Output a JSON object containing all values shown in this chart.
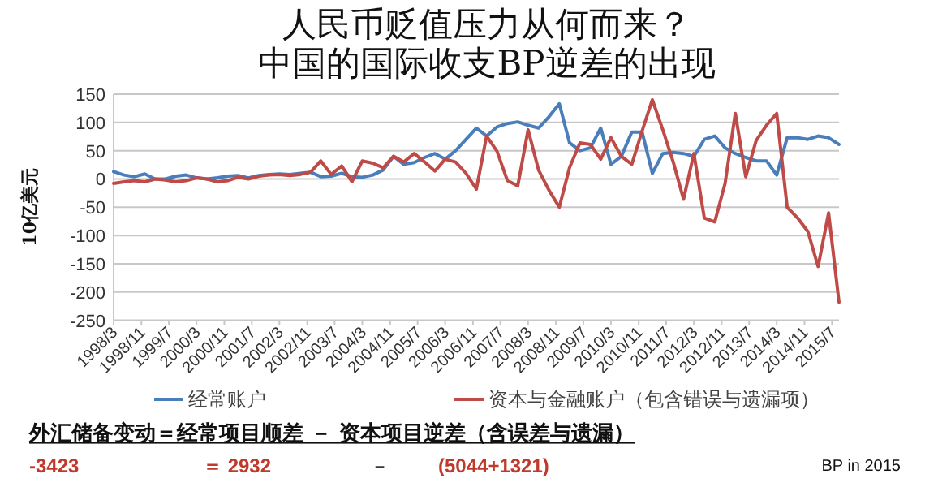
{
  "chart_data": {
    "type": "line",
    "title": "人民币贬值压力从何而来？",
    "subtitle": "中国的国际收支BP逆差的出现",
    "ylabel": "10亿美元",
    "x": [
      "1998-03",
      "1998-06",
      "1998-09",
      "1998-12",
      "1999-03",
      "1999-06",
      "1999-09",
      "1999-12",
      "2000-03",
      "2000-06",
      "2000-09",
      "2000-12",
      "2001-03",
      "2001-06",
      "2001-09",
      "2001-12",
      "2002-03",
      "2002-06",
      "2002-09",
      "2002-12",
      "2003-03",
      "2003-06",
      "2003-09",
      "2003-12",
      "2004-03",
      "2004-06",
      "2004-09",
      "2004-12",
      "2005-03",
      "2005-06",
      "2005-09",
      "2005-12",
      "2006-03",
      "2006-06",
      "2006-09",
      "2006-12",
      "2007-03",
      "2007-06",
      "2007-09",
      "2007-12",
      "2008-03",
      "2008-06",
      "2008-09",
      "2008-12",
      "2009-03",
      "2009-06",
      "2009-09",
      "2009-12",
      "2010-03",
      "2010-06",
      "2010-09",
      "2010-12",
      "2011-03",
      "2011-06",
      "2011-09",
      "2011-12",
      "2012-03",
      "2012-06",
      "2012-09",
      "2012-12",
      "2013-03",
      "2013-06",
      "2013-09",
      "2013-12",
      "2014-03",
      "2014-06",
      "2014-09",
      "2014-12",
      "2015-03",
      "2015-06",
      "2015-09"
    ],
    "series": [
      {
        "name": "经常账户",
        "color": "#4a7ebb",
        "values": [
          13,
          7,
          4,
          9,
          0,
          0,
          5,
          7,
          2,
          0,
          2,
          5,
          6,
          2,
          6,
          8,
          9,
          8,
          10,
          12,
          4,
          5,
          10,
          4,
          3,
          7,
          16,
          40,
          26,
          29,
          38,
          45,
          35,
          50,
          70,
          90,
          76,
          92,
          98,
          101,
          95,
          90,
          110,
          133,
          64,
          50,
          55,
          90,
          26,
          40,
          83,
          83,
          10,
          45,
          47,
          45,
          40,
          70,
          76,
          55,
          45,
          38,
          32,
          32,
          7,
          73,
          73,
          70,
          76,
          73,
          61
        ]
      },
      {
        "name": "资本与金融账户（包含错误与遗漏项）",
        "color": "#be4b48",
        "values": [
          -8,
          -5,
          -3,
          -5,
          0,
          -2,
          -5,
          -3,
          2,
          0,
          -5,
          -3,
          3,
          0,
          5,
          7,
          8,
          6,
          8,
          12,
          32,
          8,
          23,
          -5,
          32,
          28,
          20,
          40,
          30,
          45,
          30,
          14,
          35,
          30,
          10,
          -18,
          76,
          49,
          -3,
          -12,
          87,
          16,
          -20,
          -50,
          20,
          64,
          61,
          35,
          73,
          40,
          26,
          85,
          140,
          87,
          30,
          -36,
          45,
          -69,
          -76,
          -8,
          116,
          4,
          68,
          95,
          116,
          -50,
          -69,
          -93,
          -155,
          -60,
          -218
        ]
      }
    ],
    "xlim": [
      "1998-03",
      "2015-09"
    ],
    "xticks": [
      {
        "value": "1998-03",
        "label": "1998/3"
      },
      {
        "value": "1998-11",
        "label": "1998/11"
      },
      {
        "value": "1999-07",
        "label": "1999/7"
      },
      {
        "value": "2000-03",
        "label": "2000/3"
      },
      {
        "value": "2000-11",
        "label": "2000/11"
      },
      {
        "value": "2001-07",
        "label": "2001/7"
      },
      {
        "value": "2002-03",
        "label": "2002/3"
      },
      {
        "value": "2002-11",
        "label": "2002/11"
      },
      {
        "value": "2003-07",
        "label": "2003/7"
      },
      {
        "value": "2004-03",
        "label": "2004/3"
      },
      {
        "value": "2004-11",
        "label": "2004/11"
      },
      {
        "value": "2005-07",
        "label": "2005/7"
      },
      {
        "value": "2006-03",
        "label": "2006/3"
      },
      {
        "value": "2006-11",
        "label": "2006/11"
      },
      {
        "value": "2007-07",
        "label": "2007/7"
      },
      {
        "value": "2008-03",
        "label": "2008/3"
      },
      {
        "value": "2008-11",
        "label": "2008/11"
      },
      {
        "value": "2009-07",
        "label": "2009/7"
      },
      {
        "value": "2010-03",
        "label": "2010/3"
      },
      {
        "value": "2010-11",
        "label": "2010/11"
      },
      {
        "value": "2011-07",
        "label": "2011/7"
      },
      {
        "value": "2012-03",
        "label": "2012/3"
      },
      {
        "value": "2012-11",
        "label": "2012/11"
      },
      {
        "value": "2013-07",
        "label": "2013/7"
      },
      {
        "value": "2014-03",
        "label": "2014/3"
      },
      {
        "value": "2014-11",
        "label": "2014/11"
      },
      {
        "value": "2015-07",
        "label": "2015/7"
      }
    ],
    "ylim": [
      -250,
      150
    ],
    "yticks": [
      -250,
      -200,
      -150,
      -100,
      -50,
      0,
      50,
      100,
      150
    ],
    "grid": "y",
    "legend": "bottom",
    "marker": "none",
    "line_style": "solid",
    "annotations": [
      "外汇储备变动＝经常项目顺差 － 资本项目逆差（含误差与遗漏）",
      "-3423",
      "＝ 2932",
      "－",
      "(5044+1321)",
      "BP in 2015"
    ]
  }
}
